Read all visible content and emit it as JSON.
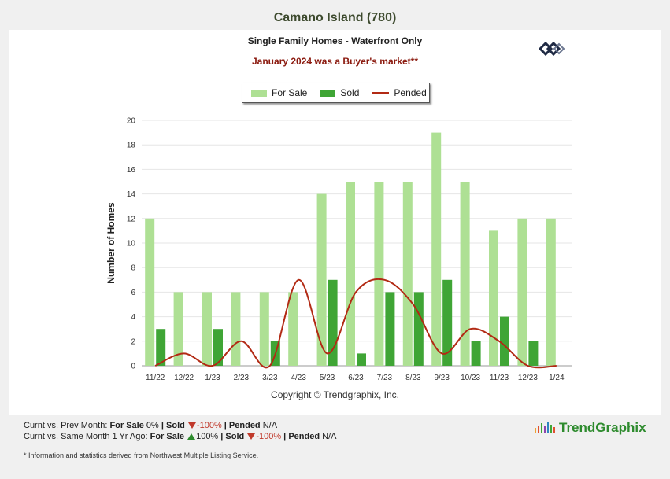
{
  "header": {
    "title": "Camano Island (780)",
    "subtitle": "Single Family Homes - Waterfront Only",
    "market_note": "January 2024 was a Buyer's market**"
  },
  "legend": {
    "items": [
      "For Sale",
      "Sold",
      "Pended"
    ]
  },
  "colors": {
    "for_sale": "#aee094",
    "sold": "#3fa535",
    "pended": "#b22a14"
  },
  "copyright": "Copyright © Trendgraphix, Inc.",
  "stats": {
    "line1": {
      "prefix": "Curnt vs. Prev Month: ",
      "for_sale_label": "For Sale",
      "for_sale_value": " 0%",
      "sep1": " | ",
      "sold_label": "Sold",
      "sold_value": "-100%",
      "sep2": " | ",
      "pended_label": "Pended",
      "pended_value": " N/A"
    },
    "line2": {
      "prefix": "Curnt vs. Same Month 1 Yr Ago: ",
      "for_sale_label": "For Sale",
      "for_sale_value": "100%",
      "sep1": " | ",
      "sold_label": "Sold",
      "sold_value": "-100%",
      "sep2": " | ",
      "pended_label": "Pended",
      "pended_value": " N/A"
    }
  },
  "brand": {
    "name": "TrendGraphix"
  },
  "footnote": "* Information and statistics derived from Northwest Multiple Listing Service.",
  "chart_data": {
    "type": "bar",
    "ylabel": "Number of Homes",
    "ylim": [
      0,
      20
    ],
    "yticks": [
      0,
      2,
      4,
      6,
      8,
      10,
      12,
      14,
      16,
      18,
      20
    ],
    "grid": true,
    "legend_position": "top-center",
    "categories": [
      "11/22",
      "12/22",
      "1/23",
      "2/23",
      "3/23",
      "4/23",
      "5/23",
      "6/23",
      "7/23",
      "8/23",
      "9/23",
      "10/23",
      "11/23",
      "12/23",
      "1/24"
    ],
    "series": [
      {
        "name": "For Sale",
        "type": "bar",
        "values": [
          12,
          6,
          6,
          6,
          6,
          6,
          14,
          15,
          15,
          15,
          19,
          15,
          11,
          12,
          12
        ]
      },
      {
        "name": "Sold",
        "type": "bar",
        "values": [
          3,
          0,
          3,
          0,
          2,
          0,
          7,
          1,
          6,
          6,
          7,
          2,
          4,
          2,
          0
        ]
      },
      {
        "name": "Pended",
        "type": "line",
        "values": [
          0,
          1,
          0,
          2,
          0,
          7,
          1,
          6,
          7,
          5,
          1,
          3,
          2,
          0,
          0
        ]
      }
    ]
  }
}
